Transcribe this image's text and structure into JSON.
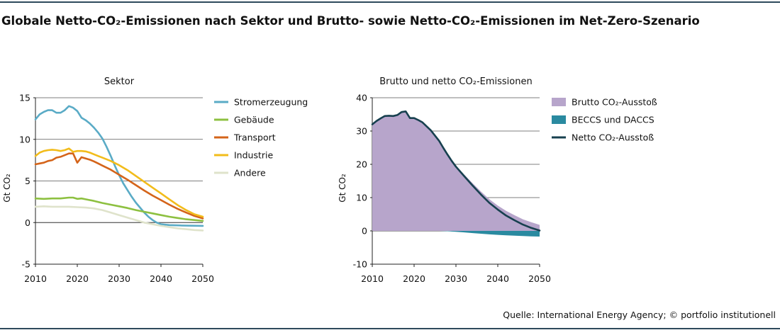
{
  "title": "Globale Netto-CO₂-Emissionen nach Sektor und Brutto- sowie Netto-CO₂-Emissionen im Net-Zero-Szenario",
  "source": "Quelle: International Energy Agency; © portfolio institutionell",
  "chart_data": [
    {
      "type": "line",
      "title": "Sektor",
      "ylabel": "Gt CO₂",
      "xlabel": "",
      "xlim": [
        2010,
        2050
      ],
      "ylim": [
        -5,
        15
      ],
      "xticks": [
        2010,
        2020,
        2030,
        2040,
        2050
      ],
      "yticks": [
        -5,
        0,
        5,
        10,
        15
      ],
      "grid": "horizontal",
      "legend": "right",
      "series": [
        {
          "name": "Stromerzeugung",
          "color": "#5aabc6",
          "x": [
            2010,
            2011,
            2012,
            2013,
            2014,
            2015,
            2016,
            2017,
            2018,
            2019,
            2020,
            2021,
            2022,
            2023,
            2024,
            2025,
            2026,
            2027,
            2028,
            2029,
            2030,
            2031,
            2032,
            2033,
            2034,
            2035,
            2036,
            2037,
            2038,
            2039,
            2040,
            2042,
            2045,
            2050
          ],
          "y": [
            12.4,
            13.0,
            13.3,
            13.5,
            13.5,
            13.2,
            13.2,
            13.5,
            14.0,
            13.8,
            13.4,
            12.6,
            12.3,
            11.9,
            11.4,
            10.8,
            10.1,
            9.1,
            8.0,
            6.8,
            5.7,
            4.7,
            3.9,
            3.1,
            2.4,
            1.8,
            1.2,
            0.7,
            0.3,
            0.0,
            -0.2,
            -0.3,
            -0.35,
            -0.4
          ]
        },
        {
          "name": "Gebäude",
          "color": "#8dc040",
          "x": [
            2010,
            2012,
            2014,
            2016,
            2018,
            2019,
            2020,
            2021,
            2022,
            2024,
            2026,
            2028,
            2030,
            2032,
            2034,
            2036,
            2038,
            2040,
            2042,
            2044,
            2046,
            2048,
            2050
          ],
          "y": [
            2.9,
            2.85,
            2.9,
            2.9,
            3.0,
            3.0,
            2.85,
            2.9,
            2.8,
            2.6,
            2.35,
            2.15,
            1.95,
            1.75,
            1.5,
            1.3,
            1.1,
            0.9,
            0.7,
            0.55,
            0.4,
            0.3,
            0.2
          ]
        },
        {
          "name": "Transport",
          "color": "#d4641a",
          "x": [
            2010,
            2011,
            2012,
            2013,
            2014,
            2015,
            2016,
            2017,
            2018,
            2019,
            2020,
            2021,
            2022,
            2023,
            2024,
            2025,
            2026,
            2027,
            2028,
            2029,
            2030,
            2032,
            2034,
            2036,
            2038,
            2040,
            2042,
            2044,
            2046,
            2048,
            2050
          ],
          "y": [
            7.0,
            7.1,
            7.2,
            7.4,
            7.5,
            7.8,
            7.9,
            8.1,
            8.3,
            8.3,
            7.2,
            7.85,
            7.7,
            7.55,
            7.35,
            7.1,
            6.85,
            6.6,
            6.35,
            6.05,
            5.75,
            5.15,
            4.5,
            3.85,
            3.25,
            2.7,
            2.15,
            1.65,
            1.2,
            0.8,
            0.5
          ]
        },
        {
          "name": "Industrie",
          "color": "#f2bc1b",
          "x": [
            2010,
            2011,
            2012,
            2013,
            2014,
            2015,
            2016,
            2017,
            2018,
            2019,
            2020,
            2021,
            2022,
            2023,
            2024,
            2025,
            2026,
            2028,
            2030,
            2032,
            2034,
            2036,
            2038,
            2040,
            2042,
            2044,
            2046,
            2048,
            2050
          ],
          "y": [
            8.0,
            8.4,
            8.6,
            8.7,
            8.75,
            8.7,
            8.6,
            8.7,
            8.9,
            8.5,
            8.6,
            8.6,
            8.55,
            8.4,
            8.2,
            8.0,
            7.8,
            7.4,
            6.9,
            6.3,
            5.6,
            4.9,
            4.2,
            3.5,
            2.8,
            2.1,
            1.5,
            1.0,
            0.7
          ]
        },
        {
          "name": "Andere",
          "color": "#dfe3cb",
          "x": [
            2010,
            2012,
            2014,
            2016,
            2018,
            2020,
            2022,
            2024,
            2026,
            2028,
            2030,
            2032,
            2034,
            2036,
            2038,
            2040,
            2042,
            2044,
            2046,
            2048,
            2050
          ],
          "y": [
            1.9,
            1.95,
            1.9,
            1.9,
            1.9,
            1.85,
            1.8,
            1.7,
            1.5,
            1.2,
            0.9,
            0.6,
            0.3,
            0.0,
            -0.2,
            -0.4,
            -0.55,
            -0.7,
            -0.8,
            -0.9,
            -0.95
          ]
        }
      ]
    },
    {
      "type": "area",
      "title": "Brutto und netto CO₂-Emissionen",
      "ylabel": "Gt CO₂",
      "xlabel": "",
      "xlim": [
        2010,
        2050
      ],
      "ylim": [
        -10,
        40
      ],
      "xticks": [
        2010,
        2020,
        2030,
        2040,
        2050
      ],
      "yticks": [
        -10,
        0,
        10,
        20,
        30,
        40
      ],
      "grid": "horizontal",
      "legend": "right",
      "series": [
        {
          "name": "Brutto CO₂-Ausstoß",
          "kind": "area",
          "color": "#b7a5cb",
          "x": [
            2010,
            2011,
            2012,
            2013,
            2014,
            2015,
            2016,
            2017,
            2018,
            2019,
            2020,
            2021,
            2022,
            2023,
            2024,
            2025,
            2026,
            2027,
            2028,
            2029,
            2030,
            2032,
            2034,
            2036,
            2038,
            2040,
            2042,
            2044,
            2046,
            2048,
            2050
          ],
          "y": [
            32.0,
            33.0,
            33.8,
            34.5,
            34.6,
            34.5,
            34.8,
            35.7,
            35.9,
            33.9,
            33.9,
            33.3,
            32.6,
            31.4,
            30.2,
            28.6,
            27.0,
            25.0,
            23.0,
            21.2,
            19.6,
            16.9,
            14.3,
            11.8,
            9.5,
            7.6,
            6.0,
            4.7,
            3.5,
            2.6,
            1.8
          ]
        },
        {
          "name": "BECCS und DACCS",
          "kind": "area",
          "color": "#2a8aa0",
          "x": [
            2010,
            2026,
            2028,
            2030,
            2032,
            2034,
            2036,
            2038,
            2040,
            2042,
            2044,
            2046,
            2048,
            2050
          ],
          "y": [
            0.0,
            0.0,
            -0.1,
            -0.25,
            -0.45,
            -0.65,
            -0.85,
            -1.05,
            -1.2,
            -1.35,
            -1.45,
            -1.55,
            -1.65,
            -1.7
          ]
        },
        {
          "name": "Netto CO₂-Ausstoß",
          "kind": "line",
          "color": "#17404f",
          "x": [
            2010,
            2011,
            2012,
            2013,
            2014,
            2015,
            2016,
            2017,
            2018,
            2019,
            2020,
            2021,
            2022,
            2023,
            2024,
            2025,
            2026,
            2027,
            2028,
            2029,
            2030,
            2032,
            2034,
            2036,
            2038,
            2040,
            2042,
            2044,
            2046,
            2048,
            2050
          ],
          "y": [
            32.0,
            33.0,
            33.8,
            34.5,
            34.6,
            34.5,
            34.8,
            35.7,
            35.9,
            33.9,
            33.9,
            33.3,
            32.6,
            31.4,
            30.2,
            28.6,
            27.0,
            24.9,
            22.9,
            21.0,
            19.3,
            16.4,
            13.6,
            10.9,
            8.4,
            6.4,
            4.6,
            3.2,
            1.9,
            0.9,
            0.1
          ]
        }
      ]
    }
  ]
}
